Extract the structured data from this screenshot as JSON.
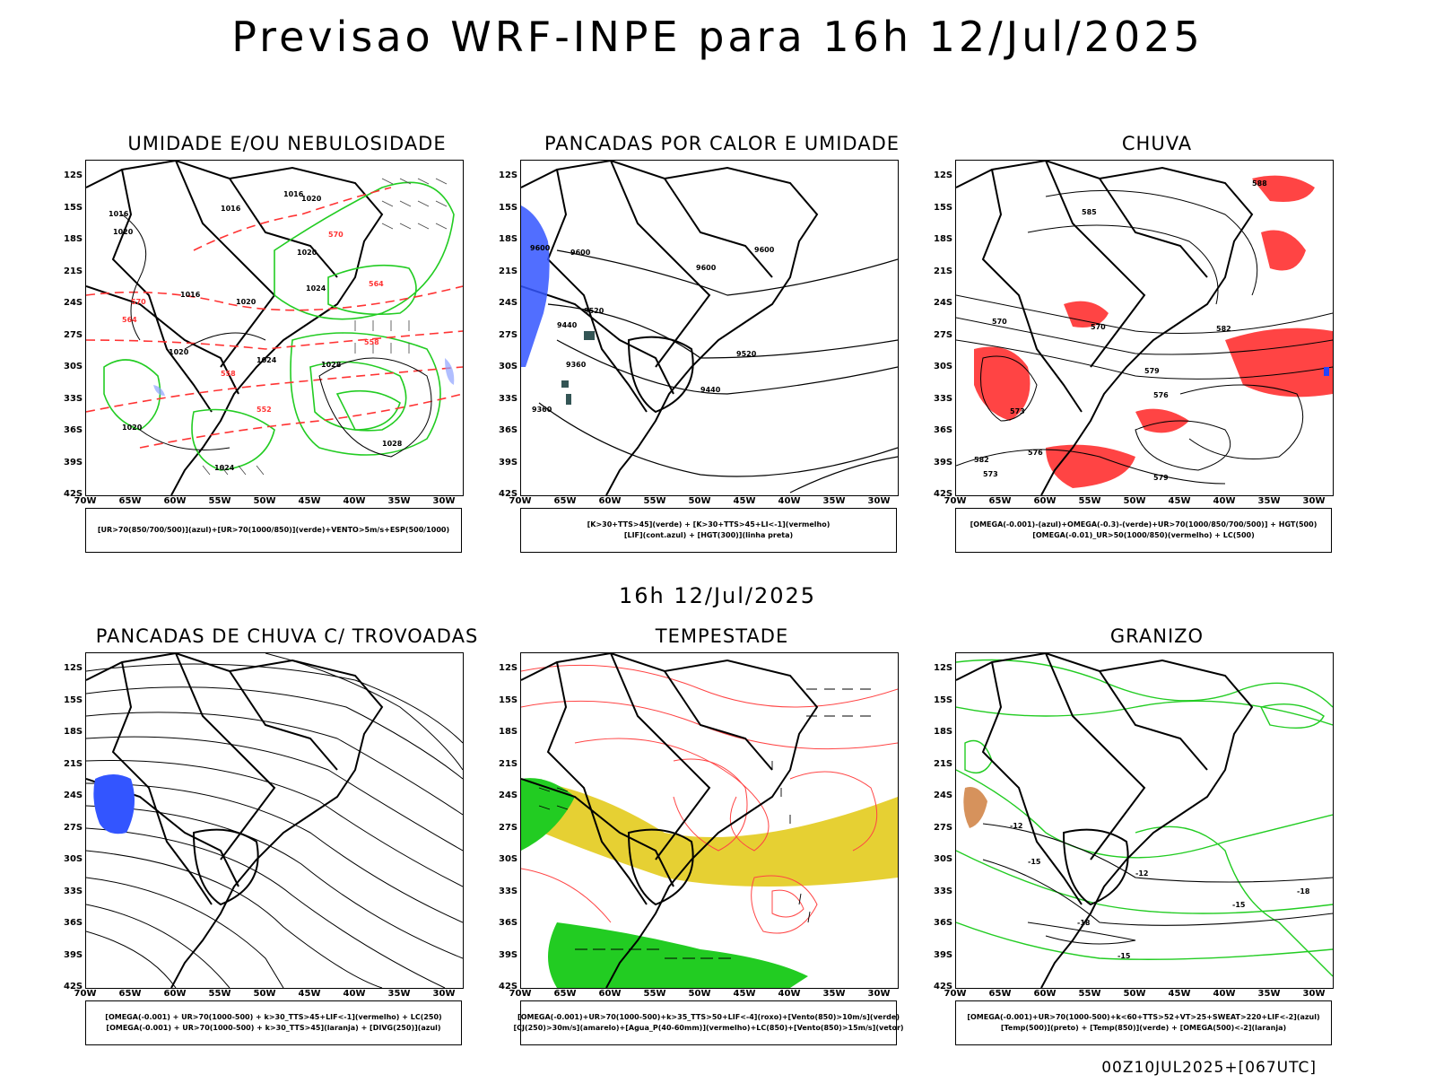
{
  "title": "Previsao WRF-INPE  para 16h 12/Jul/2025",
  "mid_title": "16h 12/Jul/2025",
  "run_label": "00Z10JUL2025+[067UTC]",
  "lat_ticks": [
    "12S",
    "15S",
    "18S",
    "21S",
    "24S",
    "27S",
    "30S",
    "33S",
    "36S",
    "39S",
    "42S"
  ],
  "lon_ticks": [
    "70W",
    "65W",
    "60W",
    "55W",
    "50W",
    "45W",
    "40W",
    "35W",
    "30W"
  ],
  "panels": [
    {
      "title": "UMIDADE E/OU NEBULOSIDADE",
      "legend": [
        "[UR>70(850/700/500)](azul)+[UR>70(1000/850)](verde)+VENTO>5m/s+ESP(500/1000)"
      ],
      "contour_labels": [
        "1016",
        "1016",
        "1020",
        "1020",
        "1016",
        "1020",
        "1020",
        "1024",
        "1028",
        "1028",
        "1024",
        "1020",
        "570",
        "570",
        "564",
        "564",
        "558",
        "558",
        "552",
        "1016",
        "1020",
        "1024"
      ]
    },
    {
      "title": "PANCADAS POR CALOR E UMIDADE",
      "legend": [
        "[K>30+TTS>45](verde) + [K>30+TTS>45+LI<-1](vermelho)",
        "[LIF](cont.azul) + [HGT(300)](linha preta)"
      ],
      "contour_labels": [
        "9600",
        "9600",
        "9600",
        "9520",
        "9440",
        "9360",
        "9520",
        "9440",
        "9360",
        "9600"
      ]
    },
    {
      "title": "CHUVA",
      "legend": [
        "[OMEGA(-0.001)-(azul)+OMEGA(-0.3)-(verde)+UR>70(1000/850/700/500)] + HGT(500)",
        "[OMEGA(-0.01)_UR>50(1000/850)(vermelho) + LC(500)"
      ],
      "contour_labels": [
        "588",
        "585",
        "582",
        "579",
        "576",
        "573",
        "570",
        "576",
        "573",
        "570",
        "579",
        "582"
      ]
    },
    {
      "title": "PANCADAS DE CHUVA C/ TROVOADAS",
      "legend": [
        "[OMEGA(-0.001) + UR>70(1000-500) + k>30_TTS>45+LIF<-1](vermelho) + LC(250)",
        "[OMEGA(-0.001) + UR>70(1000-500) + k>30_TTS>45](laranja) + [DIVG(250)](azul)"
      ],
      "contour_labels": []
    },
    {
      "title": "TEMPESTADE",
      "legend": [
        "[OMEGA(-0.001)+UR>70(1000-500)+k>35_TTS>50+LIF<-4](roxo)+[Vento(850)>10m/s](verde)",
        "[CJ(250)>30m/s](amarelo)+[Agua_P(40-60mm)](vermelho)+LC(850)+[Vento(850)>15m/s](vetor)"
      ],
      "contour_labels": []
    },
    {
      "title": "GRANIZO",
      "legend": [
        "[OMEGA(-0.001)+UR>70(1000-500)+k<60+TTS>52+VT>25+SWEAT>220+LIF<-2](azul)",
        "[Temp(500)](preto) + [Temp(850)](verde) + [OMEGA(500)<-2](laranja)"
      ],
      "contour_labels": [
        "-12",
        "-15",
        "-12",
        "-15",
        "-18",
        "-18",
        "-15"
      ]
    }
  ]
}
